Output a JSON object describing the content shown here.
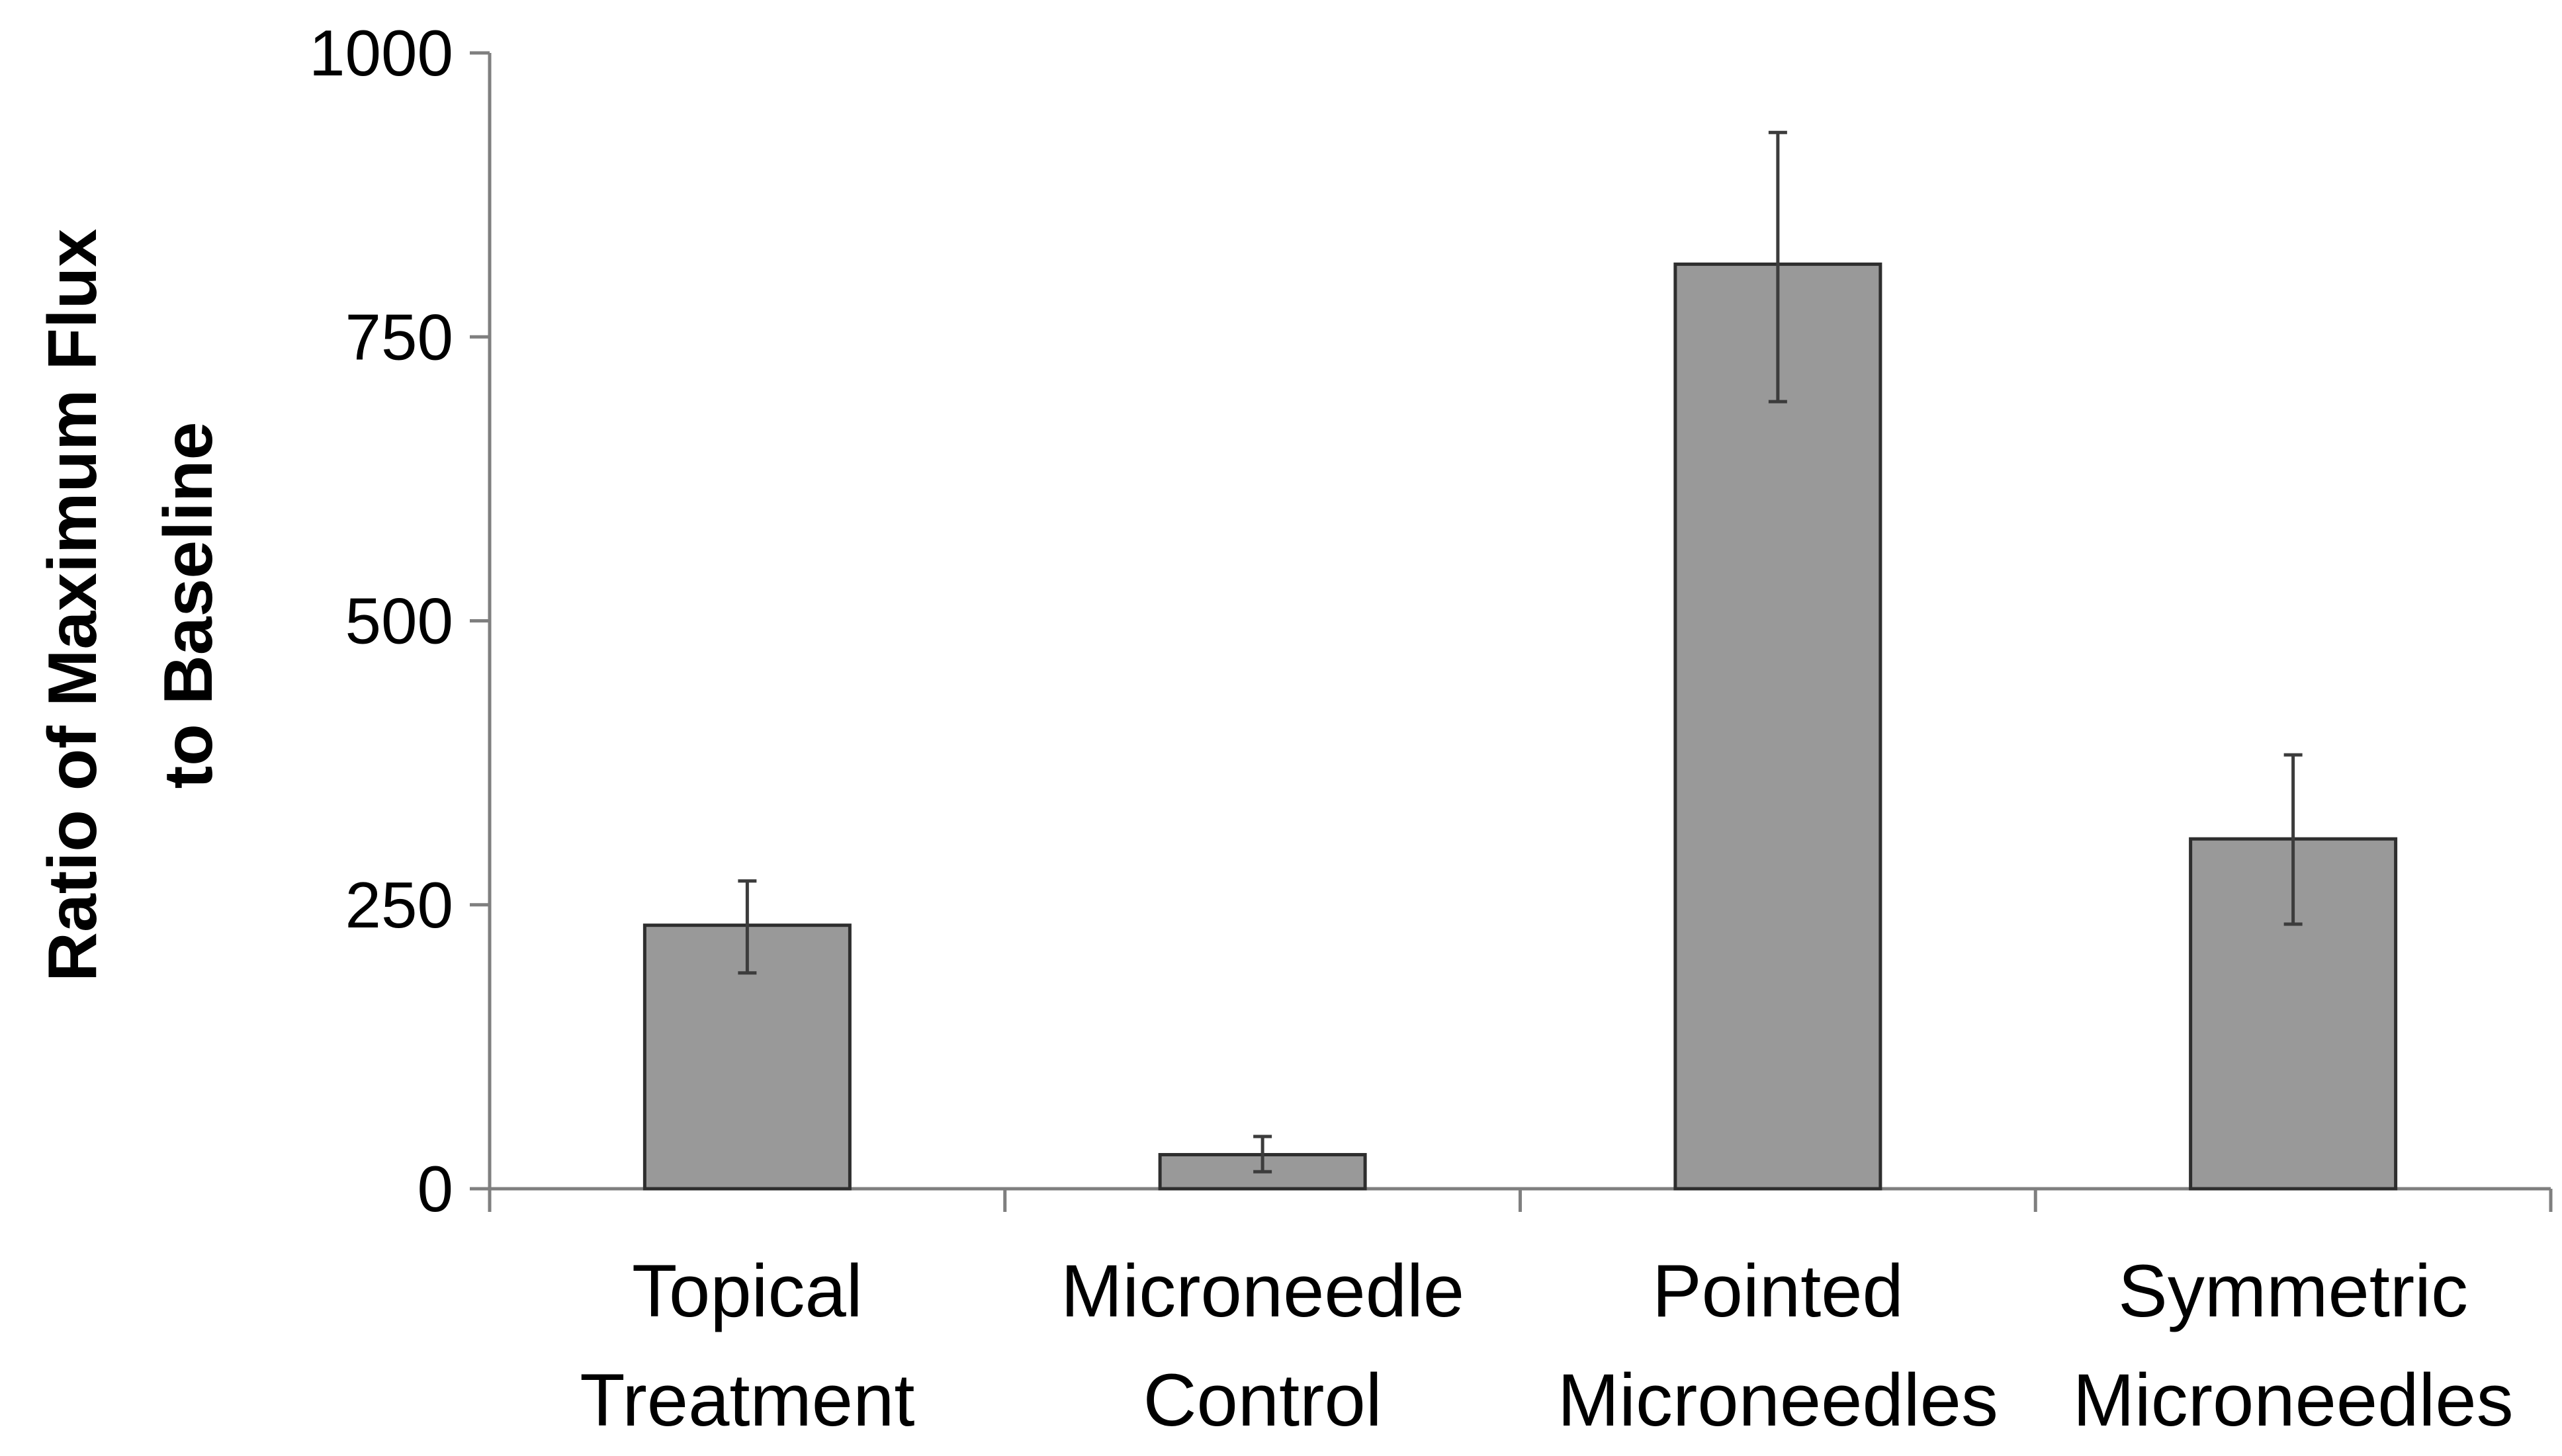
{
  "chart_data": {
    "type": "bar",
    "title": "",
    "xlabel": "",
    "ylabel": [
      "Ratio of Maximum Flux",
      "to Baseline"
    ],
    "categories": [
      [
        "Topical",
        "Treatment"
      ],
      [
        "Microneedle",
        "Control"
      ],
      [
        "Pointed",
        "Microneedles"
      ],
      [
        "Symmetric",
        "Microneedles"
      ]
    ],
    "series": [
      {
        "name": "Ratio of Maximum Flux to Baseline",
        "values": [
          232,
          30,
          814,
          308
        ],
        "error_low": [
          190,
          15,
          693,
          233
        ],
        "error_high": [
          271,
          46,
          930,
          382
        ]
      }
    ],
    "ylim": [
      0,
      1000
    ],
    "yticks": [
      0,
      250,
      500,
      750,
      1000
    ],
    "grid": false,
    "legend": "none",
    "colors": {
      "bar_fill": "#999999",
      "bar_stroke": "#2e2e2e",
      "axis": "#7f7f7f",
      "error_bar": "#3c3c3c",
      "text": "#000000"
    }
  }
}
